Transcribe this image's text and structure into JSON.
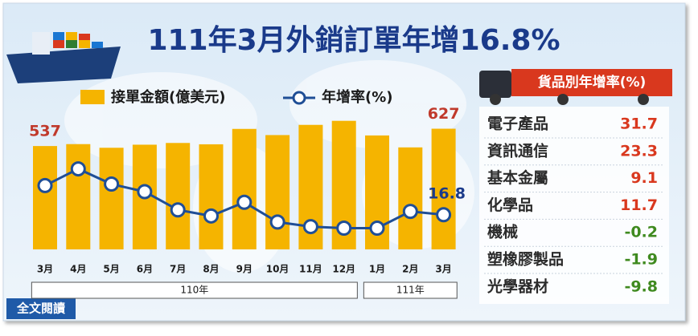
{
  "chart_data": {
    "type": "bar-line",
    "title": "111年3月外銷訂單年增16.8%",
    "categories": [
      "3月",
      "4月",
      "5月",
      "6月",
      "7月",
      "8月",
      "9月",
      "10月",
      "11月",
      "12月",
      "1月",
      "2月",
      "3月"
    ],
    "x_groups": [
      {
        "label": "110年",
        "count": 10
      },
      {
        "label": "111年",
        "count": 3
      }
    ],
    "series": [
      {
        "name": "接單金額(億美元)",
        "type": "bar",
        "color": "#f5b400",
        "values": [
          537,
          547,
          528,
          544,
          553,
          546,
          626,
          594,
          647,
          668,
          592,
          530,
          627
        ]
      },
      {
        "name": "年增率(%)",
        "type": "line",
        "axis": "y2",
        "color": "#1f4e96",
        "values": [
          36,
          47,
          37,
          32,
          20,
          16,
          25,
          12,
          9,
          8,
          8,
          19,
          16.8
        ]
      }
    ],
    "labeled_points": [
      [
        0,
        0
      ],
      [
        0,
        12
      ],
      [
        1,
        12
      ]
    ],
    "ylim": [
      0,
      750
    ],
    "y2lim": [
      -6,
      89
    ]
  },
  "growth_table": {
    "title": "貨品別年增率(%)",
    "rows": [
      [
        "電子產品",
        31.7
      ],
      [
        "資訊通信",
        23.3
      ],
      [
        "基本金屬",
        9.1
      ],
      [
        "化學品",
        11.7
      ],
      [
        "機械",
        -0.2
      ],
      [
        "塑橡膠製品",
        -1.9
      ],
      [
        "光學器材",
        -9.8
      ]
    ],
    "positive_color": "#d9381e",
    "negative_color": "#3f8a1f"
  },
  "button": "全文閱讀"
}
